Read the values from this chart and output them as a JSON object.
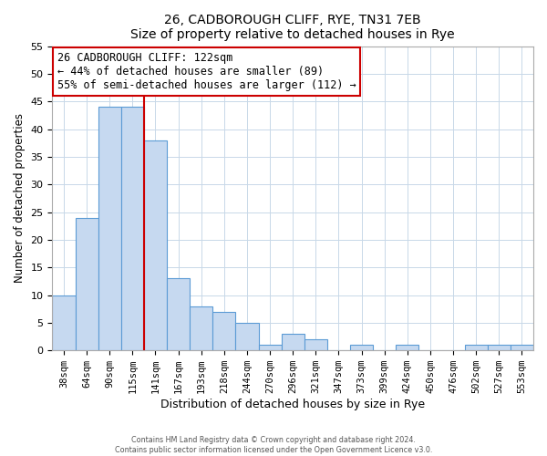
{
  "title": "26, CADBOROUGH CLIFF, RYE, TN31 7EB",
  "subtitle": "Size of property relative to detached houses in Rye",
  "xlabel": "Distribution of detached houses by size in Rye",
  "ylabel": "Number of detached properties",
  "bar_labels": [
    "38sqm",
    "64sqm",
    "90sqm",
    "115sqm",
    "141sqm",
    "167sqm",
    "193sqm",
    "218sqm",
    "244sqm",
    "270sqm",
    "296sqm",
    "321sqm",
    "347sqm",
    "373sqm",
    "399sqm",
    "424sqm",
    "450sqm",
    "476sqm",
    "502sqm",
    "527sqm",
    "553sqm"
  ],
  "bar_values": [
    10,
    24,
    44,
    44,
    38,
    13,
    8,
    7,
    5,
    1,
    3,
    2,
    0,
    1,
    0,
    1,
    0,
    0,
    1,
    1,
    1
  ],
  "bar_color": "#c6d9f0",
  "bar_edge_color": "#5b9bd5",
  "annotation_text_line1": "26 CADBOROUGH CLIFF: 122sqm",
  "annotation_text_line2": "← 44% of detached houses are smaller (89)",
  "annotation_text_line3": "55% of semi-detached houses are larger (112) →",
  "vline_x": 3.5,
  "vline_color": "#cc0000",
  "ylim": [
    0,
    55
  ],
  "yticks": [
    0,
    5,
    10,
    15,
    20,
    25,
    30,
    35,
    40,
    45,
    50,
    55
  ],
  "footer1": "Contains HM Land Registry data © Crown copyright and database right 2024.",
  "footer2": "Contains public sector information licensed under the Open Government Licence v3.0.",
  "bg_color": "#ffffff",
  "plot_bg_color": "#ffffff",
  "grid_color": "#c8d8e8"
}
